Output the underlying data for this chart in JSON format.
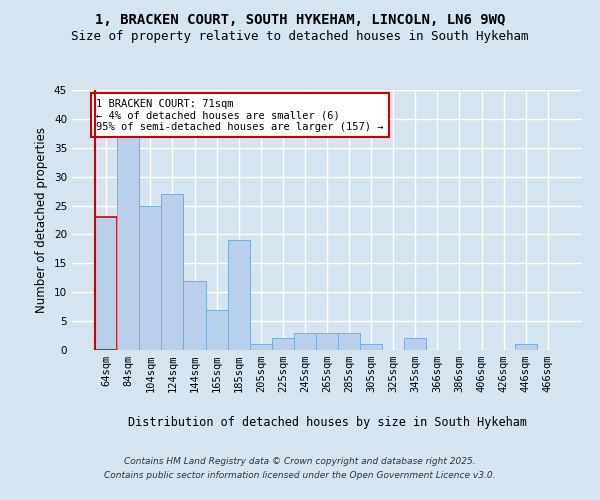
{
  "title_line1": "1, BRACKEN COURT, SOUTH HYKEHAM, LINCOLN, LN6 9WQ",
  "title_line2": "Size of property relative to detached houses in South Hykeham",
  "xlabel": "Distribution of detached houses by size in South Hykeham",
  "ylabel": "Number of detached properties",
  "categories": [
    "64sqm",
    "84sqm",
    "104sqm",
    "124sqm",
    "144sqm",
    "165sqm",
    "185sqm",
    "205sqm",
    "225sqm",
    "245sqm",
    "265sqm",
    "285sqm",
    "305sqm",
    "325sqm",
    "345sqm",
    "366sqm",
    "386sqm",
    "406sqm",
    "426sqm",
    "446sqm",
    "466sqm"
  ],
  "values": [
    23,
    37,
    25,
    27,
    12,
    7,
    19,
    1,
    2,
    3,
    3,
    3,
    1,
    0,
    2,
    0,
    0,
    0,
    0,
    1,
    0
  ],
  "bar_color": "#b8d0ea",
  "bar_edge_color": "#7aaed6",
  "highlight_bar_edge_color": "#cc0000",
  "annotation_text": "1 BRACKEN COURT: 71sqm\n← 4% of detached houses are smaller (6)\n95% of semi-detached houses are larger (157) →",
  "annotation_box_color": "#ffffff",
  "annotation_box_edge_color": "#cc0000",
  "ylim": [
    0,
    45
  ],
  "yticks": [
    0,
    5,
    10,
    15,
    20,
    25,
    30,
    35,
    40,
    45
  ],
  "fig_background_color": "#d6e4f0",
  "plot_bg_color": "#d6e4f0",
  "grid_color": "#ffffff",
  "footer_line1": "Contains HM Land Registry data © Crown copyright and database right 2025.",
  "footer_line2": "Contains public sector information licensed under the Open Government Licence v3.0.",
  "title_fontsize": 10,
  "subtitle_fontsize": 9,
  "axis_label_fontsize": 8.5,
  "tick_fontsize": 7.5,
  "annotation_fontsize": 7.5,
  "footer_fontsize": 6.5
}
